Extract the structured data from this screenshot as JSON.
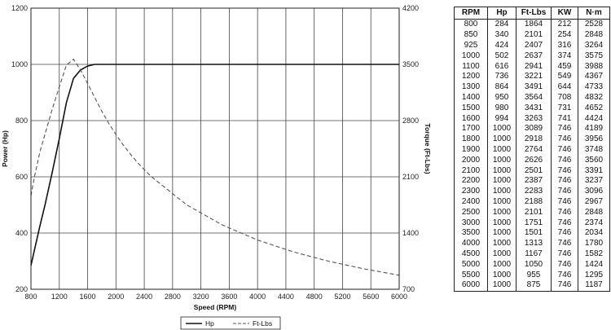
{
  "chart_data": {
    "type": "line",
    "xlabel": "Speed (RPM)",
    "ylabel_left": "Power (Hp)",
    "ylabel_right": "Torque (Ft-Lbs)",
    "xlim": [
      800,
      6000
    ],
    "ylim_left": [
      200,
      1200
    ],
    "ylim_right": [
      700,
      4200
    ],
    "x_ticks": [
      800,
      1200,
      1600,
      2000,
      2400,
      2800,
      3200,
      3600,
      4000,
      4400,
      4800,
      5200,
      5600,
      6000
    ],
    "y_ticks_left": [
      200,
      400,
      600,
      800,
      1000,
      1200
    ],
    "y_ticks_right": [
      700,
      1400,
      2100,
      2800,
      3500,
      4200
    ],
    "grid": true,
    "legend_position": "bottom-center",
    "series": [
      {
        "name": "Hp",
        "axis": "left",
        "style": "solid",
        "x": [
          800,
          850,
          925,
          1000,
          1100,
          1200,
          1300,
          1400,
          1500,
          1600,
          1700,
          1800,
          1900,
          2000,
          2100,
          2200,
          2300,
          2400,
          2500,
          3000,
          3500,
          4000,
          4500,
          5000,
          5500,
          6000
        ],
        "y": [
          284,
          340,
          424,
          502,
          616,
          736,
          864,
          950,
          980,
          994,
          1000,
          1000,
          1000,
          1000,
          1000,
          1000,
          1000,
          1000,
          1000,
          1000,
          1000,
          1000,
          1000,
          1000,
          1000,
          1000
        ]
      },
      {
        "name": "Ft-Lbs",
        "axis": "right",
        "style": "dashed",
        "x": [
          800,
          850,
          925,
          1000,
          1100,
          1200,
          1300,
          1400,
          1500,
          1600,
          1700,
          1800,
          1900,
          2000,
          2100,
          2200,
          2300,
          2400,
          2500,
          3000,
          3500,
          4000,
          4500,
          5000,
          5500,
          6000
        ],
        "y": [
          1864,
          2101,
          2407,
          2637,
          2941,
          3221,
          3491,
          3564,
          3431,
          3263,
          3089,
          2918,
          2764,
          2626,
          2501,
          2387,
          2283,
          2188,
          2101,
          1751,
          1501,
          1313,
          1167,
          1050,
          955,
          875
        ]
      }
    ]
  },
  "table": {
    "headers": [
      "RPM",
      "Hp",
      "Ft-Lbs",
      "KW",
      "N·m"
    ],
    "rows": [
      [
        "800",
        "284",
        "1864",
        "212",
        "2528"
      ],
      [
        "850",
        "340",
        "2101",
        "254",
        "2848"
      ],
      [
        "925",
        "424",
        "2407",
        "316",
        "3264"
      ],
      [
        "1000",
        "502",
        "2637",
        "374",
        "3575"
      ],
      [
        "1100",
        "616",
        "2941",
        "459",
        "3988"
      ],
      [
        "1200",
        "736",
        "3221",
        "549",
        "4367"
      ],
      [
        "1300",
        "864",
        "3491",
        "644",
        "4733"
      ],
      [
        "1400",
        "950",
        "3564",
        "708",
        "4832"
      ],
      [
        "1500",
        "980",
        "3431",
        "731",
        "4652"
      ],
      [
        "1600",
        "994",
        "3263",
        "741",
        "4424"
      ],
      [
        "1700",
        "1000",
        "3089",
        "746",
        "4189"
      ],
      [
        "1800",
        "1000",
        "2918",
        "746",
        "3956"
      ],
      [
        "1900",
        "1000",
        "2764",
        "746",
        "3748"
      ],
      [
        "2000",
        "1000",
        "2626",
        "746",
        "3560"
      ],
      [
        "2100",
        "1000",
        "2501",
        "746",
        "3391"
      ],
      [
        "2200",
        "1000",
        "2387",
        "746",
        "3237"
      ],
      [
        "2300",
        "1000",
        "2283",
        "746",
        "3096"
      ],
      [
        "2400",
        "1000",
        "2188",
        "746",
        "2967"
      ],
      [
        "2500",
        "1000",
        "2101",
        "746",
        "2848"
      ],
      [
        "3000",
        "1000",
        "1751",
        "746",
        "2374"
      ],
      [
        "3500",
        "1000",
        "1501",
        "746",
        "2034"
      ],
      [
        "4000",
        "1000",
        "1313",
        "746",
        "1780"
      ],
      [
        "4500",
        "1000",
        "1167",
        "746",
        "1582"
      ],
      [
        "5000",
        "1000",
        "1050",
        "746",
        "1424"
      ],
      [
        "5500",
        "1000",
        "955",
        "746",
        "1295"
      ],
      [
        "6000",
        "1000",
        "875",
        "746",
        "1187"
      ]
    ]
  }
}
